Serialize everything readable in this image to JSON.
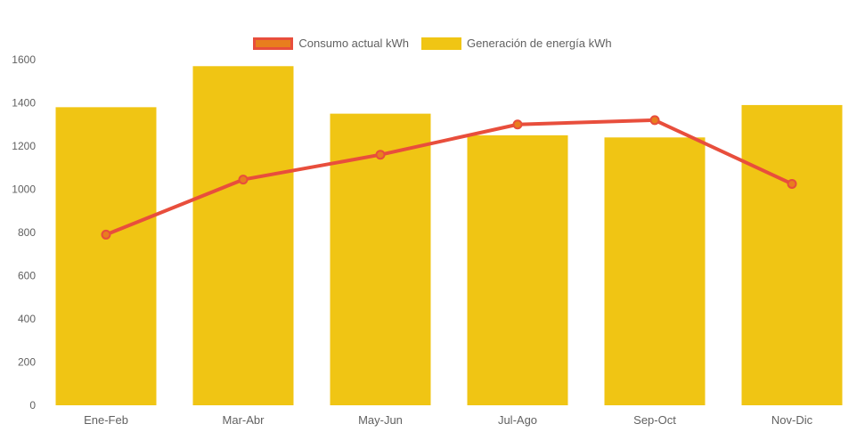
{
  "chart": {
    "background": "#ffffff",
    "text_color": "#616161",
    "legend": [
      {
        "label": "Consumo actual kWh",
        "swatch_fill": "#E87E1E",
        "swatch_border": "#E84E3C",
        "series_type": "line"
      },
      {
        "label": "Generación de energía kWh",
        "swatch_fill": "#F0C514",
        "swatch_border": "#F0C514",
        "series_type": "bar"
      }
    ]
  },
  "chart_data": {
    "type": "combo",
    "title": "",
    "xlabel": "",
    "ylabel": "",
    "categories": [
      "Ene-Feb",
      "Mar-Abr",
      "May-Jun",
      "Jul-Ago",
      "Sep-Oct",
      "Nov-Dic"
    ],
    "series": [
      {
        "name": "Generación de energía kWh",
        "type": "bar",
        "color": "#F0C514",
        "values": [
          1380,
          1570,
          1350,
          1250,
          1240,
          1390
        ]
      },
      {
        "name": "Consumo actual kWh",
        "type": "line",
        "color": "#E84E3C",
        "marker_fill": "#E87E1E",
        "values": [
          790,
          1045,
          1160,
          1300,
          1320,
          1025
        ]
      }
    ],
    "ylim": [
      0,
      1600
    ],
    "y_ticks": [
      0,
      200,
      400,
      600,
      800,
      1000,
      1200,
      1400,
      1600
    ],
    "grid": false,
    "legend_position": "top-center"
  }
}
